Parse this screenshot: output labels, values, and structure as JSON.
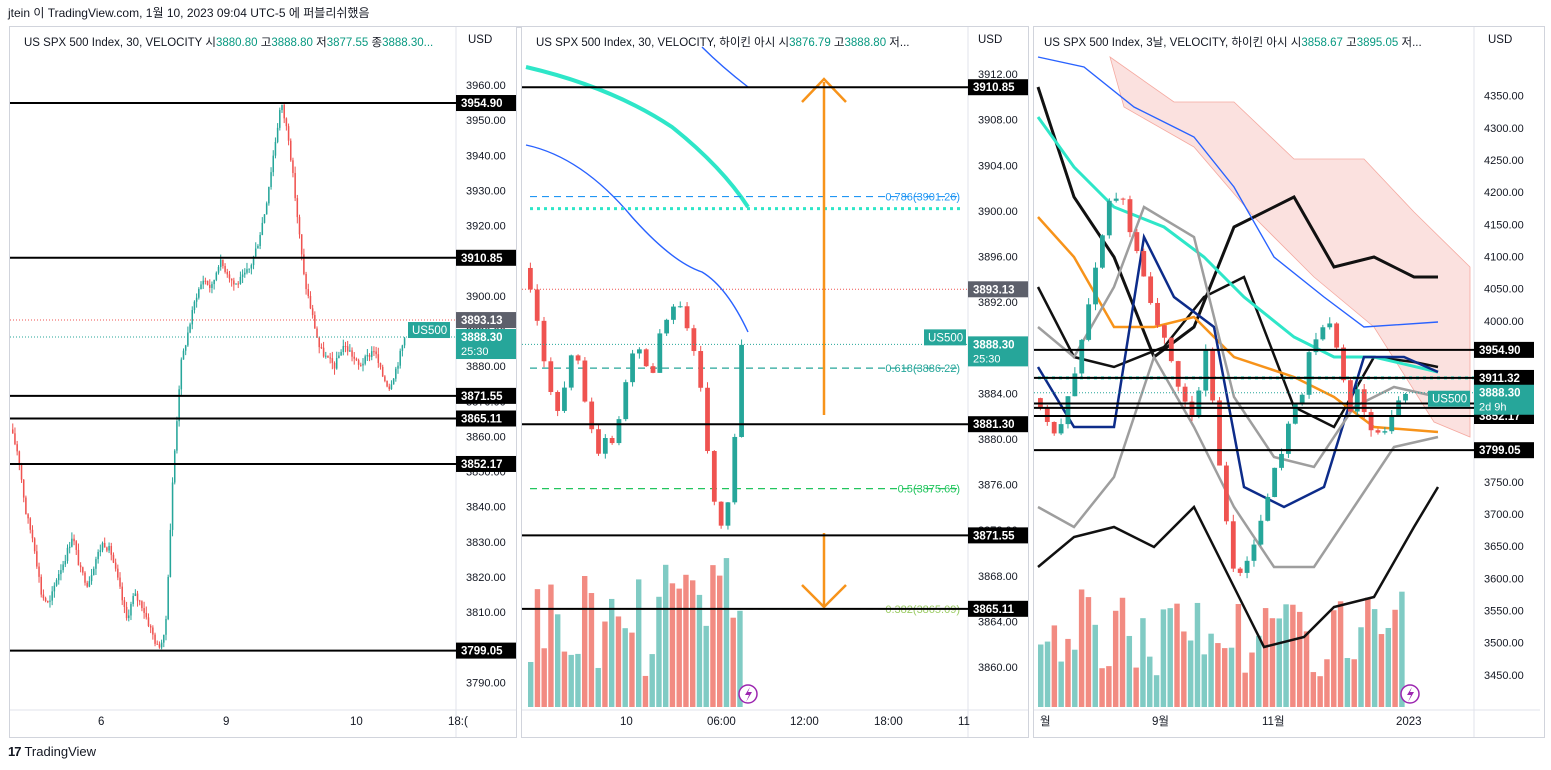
{
  "header": {
    "title": "jtein 이 TradingView.com, 1월 10, 2023 09:04 UTC-5 에 퍼블리쉬했음"
  },
  "footer": {
    "brand": "TradingView",
    "logo": "17"
  },
  "colors": {
    "up": "#26a69a",
    "down": "#ef5350",
    "vol_up": "#80cbc4",
    "vol_down": "#f28b82",
    "cyan": "#2ee6c8",
    "blue": "#2962ff",
    "orange": "#f7931a",
    "navy": "#0d2c8a",
    "grey": "#9e9e9e",
    "cloud": "#f8c9c4"
  },
  "chart_data": [
    {
      "type": "candlestick",
      "legend": {
        "symbol": "US SPX 500 Index, 30, VELOCITY",
        "open_label": "시",
        "open": "3880.80",
        "high_label": "고",
        "high": "3888.80",
        "low_label": "저",
        "low": "3877.55",
        "close_label": "종",
        "close": "3888.30..."
      },
      "currency": "USD",
      "ylim": [
        3783,
        3968
      ],
      "y_ticks": [
        "3960.00",
        "3950.00",
        "3940.00",
        "3930.00",
        "3920.00",
        "3910.00",
        "3900.00",
        "3890.00",
        "3880.00",
        "3870.00",
        "3860.00",
        "3850.00",
        "3840.00",
        "3830.00",
        "3820.00",
        "3810.00",
        "3800.00",
        "3790.00"
      ],
      "x_ticks": [
        "6",
        "9",
        "10",
        "18:("
      ],
      "levels": [
        "3954.90",
        "3910.85",
        "3871.55",
        "3865.11",
        "3852.17",
        "3799.05"
      ],
      "price_tags": [
        {
          "label": "3893.13"
        },
        {
          "label": "3888.30",
          "sub": "25:30"
        }
      ],
      "symbol_tag": "US500",
      "path": [
        3862,
        3855,
        3838,
        3830,
        3815,
        3812,
        3820,
        3825,
        3832,
        3822,
        3818,
        3825,
        3830,
        3827,
        3818,
        3808,
        3815,
        3812,
        3806,
        3800,
        3803,
        3848,
        3880,
        3890,
        3900,
        3905,
        3902,
        3910,
        3907,
        3903,
        3905,
        3908,
        3915,
        3925,
        3940,
        3955,
        3945,
        3925,
        3905,
        3895,
        3885,
        3882,
        3880,
        3886,
        3884,
        3880,
        3882,
        3885,
        3878,
        3874,
        3880,
        3888
      ]
    },
    {
      "type": "candlestick",
      "legend": {
        "symbol": "US SPX 500 Index, 30, VELOCITY, 하이킨 아시",
        "open_label": "시",
        "open": "3876.79",
        "high_label": "고",
        "high": "3888.80",
        "low_label": "저",
        "low": "..."
      },
      "currency": "USD",
      "ylim": [
        3856.5,
        3913.5
      ],
      "y_ticks": [
        "3912.00",
        "3908.00",
        "3904.00",
        "3900.00",
        "3896.00",
        "3892.00",
        "3888.00",
        "3884.00",
        "3880.00",
        "3876.00",
        "3872.00",
        "3868.00",
        "3864.00",
        "3860.00"
      ],
      "x_ticks": [
        "10",
        "06:00",
        "12:00",
        "18:00",
        "11"
      ],
      "levels": [
        "3910.85",
        "3881.30",
        "3871.55",
        "3865.11"
      ],
      "fib": [
        {
          "label": "0.786(3901.26)",
          "value": 3901.26,
          "color": "#2196f3"
        },
        {
          "label": "0.618(3886.22)",
          "value": 3886.22,
          "color": "#26a69a"
        },
        {
          "label": "0.5(3875.65)",
          "value": 3875.65,
          "color": "#22c55e"
        },
        {
          "label": "0.382(3865.09)",
          "value": 3865.09,
          "color": "#9ccc65"
        }
      ],
      "price_tags": [
        {
          "label": "3893.13"
        },
        {
          "label": "3888.30",
          "sub": "25:30"
        }
      ],
      "symbol_tag": "US500",
      "path": [
        3895,
        3893,
        3890,
        3887,
        3884,
        3882,
        3885,
        3888,
        3886,
        3883,
        3880,
        3878,
        3881,
        3879,
        3883,
        3886,
        3889,
        3887,
        3885,
        3888,
        3890,
        3891,
        3893,
        3890,
        3888,
        3885,
        3880,
        3875,
        3872,
        3874,
        3880,
        3888
      ]
    },
    {
      "type": "candlestick",
      "legend": {
        "symbol": "US SPX 500 Index, 3날, VELOCITY, 하이킨 아시",
        "open_label": "시",
        "open": "3858.67",
        "high_label": "고",
        "high": "3895.05",
        "low_label": "저",
        "low": "..."
      },
      "currency": "USD",
      "ylim": [
        3400,
        4410
      ],
      "y_ticks": [
        "4350.00",
        "4300.00",
        "4250.00",
        "4200.00",
        "4150.00",
        "4100.00",
        "4050.00",
        "4000.00",
        "3950.00",
        "3900.00",
        "3850.00",
        "3800.00",
        "3750.00",
        "3700.00",
        "3650.00",
        "3600.00",
        "3550.00",
        "3500.00",
        "3450.00"
      ],
      "x_ticks": [
        "월",
        "9월",
        "11월",
        "2023"
      ],
      "levels": [
        "3954.90",
        "3911.32",
        "3871.55",
        "3864.76",
        "3852.17",
        "3799.05"
      ],
      "price_tags": [
        {
          "label": "3888.30",
          "sub": "2d 9h"
        }
      ],
      "symbol_tag": "US500",
      "path": [
        3880,
        3860,
        3830,
        3840,
        3900,
        3960,
        4050,
        4120,
        4180,
        4200,
        4150,
        4100,
        4050,
        4000,
        3950,
        3900,
        3880,
        3850,
        3950,
        3850,
        3700,
        3620,
        3600,
        3650,
        3700,
        3750,
        3800,
        3850,
        3880,
        3950,
        3980,
        4000,
        3950,
        3850,
        3900,
        3850,
        3820,
        3830,
        3860,
        3888
      ]
    }
  ]
}
